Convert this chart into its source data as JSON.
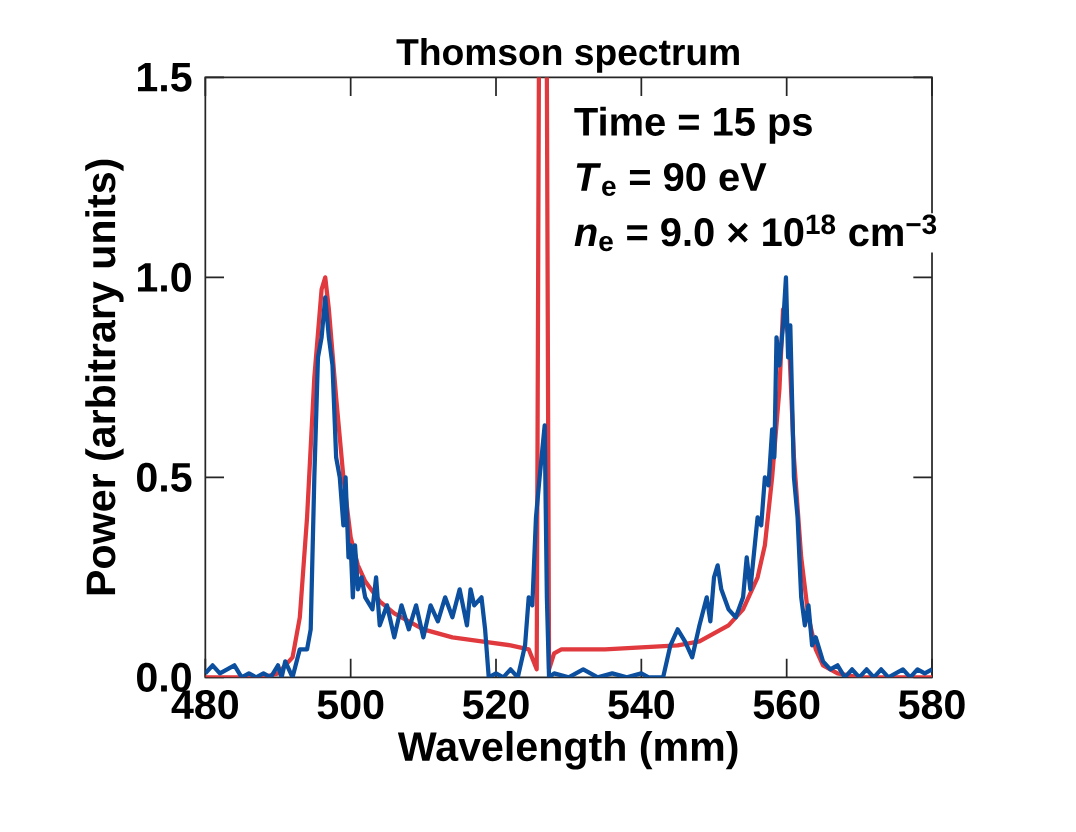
{
  "chart_data": {
    "type": "line",
    "title": "Thomson spectrum",
    "xlabel": "Wavelength (mm)",
    "ylabel": "Power (arbitrary units)",
    "annotations": [
      "Time = 15 ps",
      "*T*$_{e}$ = 90 eV",
      "*n*$_{e}$ = 9.0 × 10$^{18}$ cm$^{−3}$"
    ],
    "xlim": [
      480,
      580
    ],
    "ylim": [
      0,
      1.5
    ],
    "xticks": [
      480,
      500,
      520,
      540,
      560,
      580
    ],
    "yticks": [
      {
        "value": 0,
        "label": "0.0"
      },
      {
        "value": 0.5,
        "label": "0.5"
      },
      {
        "value": 1,
        "label": "1.0"
      },
      {
        "value": 1.5,
        "label": "1.5"
      }
    ],
    "grid": false,
    "marker": "none",
    "line_style": "solid",
    "series": [
      {
        "color": "#e0393e",
        "x": [
          480,
          484,
          488,
          490,
          492,
          493,
          494,
          495,
          496,
          496.5,
          497,
          498,
          499,
          500,
          501,
          502,
          504,
          506,
          508,
          510,
          514,
          518,
          522,
          524.5,
          525.6,
          525.9,
          526.5,
          527.0,
          527.3,
          528,
          529,
          535,
          540,
          545,
          548,
          550,
          552,
          554,
          556,
          557,
          558,
          559,
          559.5,
          560.3,
          561,
          562,
          563,
          564,
          565,
          567,
          570,
          575,
          580
        ],
        "values": [
          0,
          0,
          0,
          0.01,
          0.05,
          0.15,
          0.4,
          0.75,
          0.97,
          1.0,
          0.92,
          0.7,
          0.5,
          0.35,
          0.28,
          0.24,
          0.19,
          0.16,
          0.14,
          0.12,
          0.1,
          0.09,
          0.08,
          0.07,
          0.02,
          1.5,
          null,
          1.5,
          0.02,
          0.06,
          0.07,
          0.07,
          0.075,
          0.08,
          0.09,
          0.11,
          0.13,
          0.17,
          0.25,
          0.33,
          0.5,
          0.72,
          0.92,
          0.85,
          0.55,
          0.3,
          0.15,
          0.07,
          0.03,
          0.01,
          0,
          0,
          0
        ]
      },
      {
        "color": "#0b4f9e",
        "x": [
          480,
          481,
          482,
          483,
          484,
          485,
          486,
          487,
          488,
          489,
          490,
          490.5,
          491,
          492,
          493,
          494,
          494.5,
          495,
          495.5,
          496,
          496.5,
          497,
          497.5,
          498,
          498.5,
          499,
          499.3,
          499.7,
          500,
          500.3,
          500.6,
          501,
          501.5,
          502,
          503,
          503.5,
          504,
          505,
          506,
          507,
          508,
          509,
          510,
          511,
          512,
          513,
          514,
          515,
          516,
          516.5,
          517,
          518,
          518.5,
          519,
          520,
          521,
          522,
          523,
          524,
          524.5,
          525,
          525.5,
          526,
          526.7,
          527,
          527.3,
          528,
          530,
          532,
          534,
          536,
          538,
          540,
          541,
          543,
          544,
          545,
          546,
          547,
          548,
          549,
          549.5,
          550,
          550.5,
          551,
          552,
          553,
          554,
          554.5,
          555,
          556,
          556.5,
          557,
          557.5,
          558,
          558.3,
          558.6,
          559,
          559.5,
          559.9,
          560.2,
          560.5,
          561,
          561.5,
          562,
          562.5,
          563,
          563.5,
          564,
          565,
          566,
          567,
          568,
          569,
          570,
          571,
          572,
          573,
          574,
          575,
          576,
          577,
          578,
          579,
          580
        ],
        "values": [
          0.01,
          0.03,
          0.01,
          0.02,
          0.03,
          0.0,
          0.01,
          0.0,
          0.01,
          0.0,
          0.03,
          0.0,
          0.04,
          0.0,
          0.07,
          0.07,
          0.12,
          0.5,
          0.8,
          0.85,
          0.95,
          0.85,
          0.78,
          0.55,
          0.5,
          0.38,
          0.5,
          0.3,
          0.33,
          0.2,
          0.33,
          0.22,
          0.25,
          0.2,
          0.17,
          0.25,
          0.13,
          0.18,
          0.1,
          0.18,
          0.12,
          0.18,
          0.1,
          0.18,
          0.14,
          0.2,
          0.15,
          0.22,
          0.13,
          0.22,
          0.18,
          0.2,
          0.12,
          0.0,
          0.01,
          0.0,
          0.02,
          0.0,
          0.08,
          0.2,
          0.18,
          0.4,
          0.5,
          0.63,
          0.2,
          0.0,
          0.01,
          0.0,
          0.02,
          0.0,
          0.01,
          0.0,
          0.01,
          0.0,
          0.0,
          0.08,
          0.12,
          0.09,
          0.05,
          0.13,
          0.2,
          0.14,
          0.25,
          0.28,
          0.22,
          0.17,
          0.15,
          0.2,
          0.3,
          0.22,
          0.4,
          0.38,
          0.5,
          0.48,
          0.62,
          0.55,
          0.85,
          0.78,
          0.88,
          1.0,
          0.8,
          0.88,
          0.5,
          0.4,
          0.2,
          0.13,
          0.18,
          0.08,
          0.1,
          0.04,
          0.02,
          0.03,
          0.0,
          0.02,
          0.0,
          0.02,
          0.0,
          0.02,
          0.0,
          0.01,
          0.02,
          0.0,
          0.02,
          0.01,
          0.02
        ]
      }
    ]
  }
}
